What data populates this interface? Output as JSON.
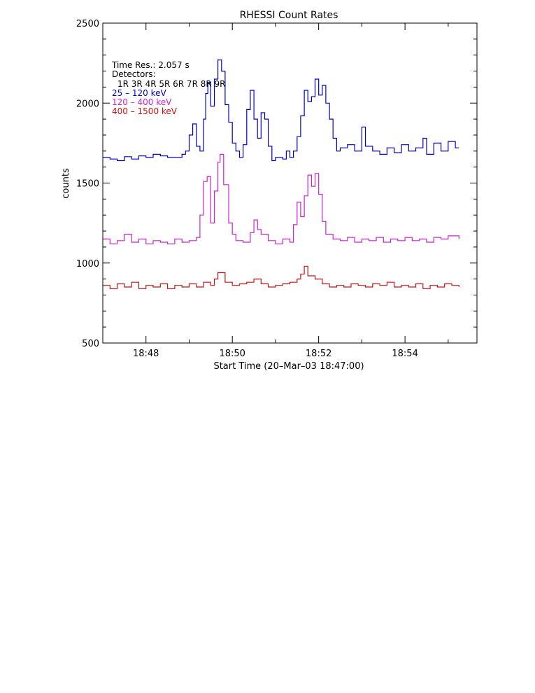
{
  "chart_data": {
    "type": "line",
    "title": "RHESSI Count Rates",
    "xlabel": "Start Time (20–Mar–03 18:47:00)",
    "ylabel": "counts",
    "xlim": [
      "18:47:00",
      "18:55:40"
    ],
    "ylim": [
      500,
      2500
    ],
    "x_ticks": [
      "18:48",
      "18:50",
      "18:52",
      "18:54"
    ],
    "y_ticks": [
      500,
      1000,
      1500,
      2000,
      2500
    ],
    "grid": false,
    "legend_position": "top-left",
    "annotation_lines": [
      "Time Res.: 2.057 s",
      "Detectors:",
      "1R 3R 4R 5R 6R 7R 8R 9R"
    ],
    "time_resolution_s": 2.057,
    "series": [
      {
        "name": "25 – 120 keV",
        "color": "#0000cc",
        "points": [
          [
            "18:47:00",
            1660
          ],
          [
            "18:47:10",
            1650
          ],
          [
            "18:47:20",
            1640
          ],
          [
            "18:47:30",
            1665
          ],
          [
            "18:47:40",
            1650
          ],
          [
            "18:47:50",
            1670
          ],
          [
            "18:48:00",
            1660
          ],
          [
            "18:48:10",
            1680
          ],
          [
            "18:48:20",
            1670
          ],
          [
            "18:48:30",
            1660
          ],
          [
            "18:48:40",
            1660
          ],
          [
            "18:48:50",
            1680
          ],
          [
            "18:48:55",
            1700
          ],
          [
            "18:49:00",
            1800
          ],
          [
            "18:49:05",
            1870
          ],
          [
            "18:49:10",
            1730
          ],
          [
            "18:49:15",
            1700
          ],
          [
            "18:49:20",
            1900
          ],
          [
            "18:49:23",
            2060
          ],
          [
            "18:49:26",
            2130
          ],
          [
            "18:49:30",
            1980
          ],
          [
            "18:49:35",
            2150
          ],
          [
            "18:49:40",
            2270
          ],
          [
            "18:49:45",
            2200
          ],
          [
            "18:49:50",
            1990
          ],
          [
            "18:49:55",
            1880
          ],
          [
            "18:50:00",
            1750
          ],
          [
            "18:50:05",
            1700
          ],
          [
            "18:50:10",
            1660
          ],
          [
            "18:50:15",
            1740
          ],
          [
            "18:50:20",
            1960
          ],
          [
            "18:50:25",
            2080
          ],
          [
            "18:50:30",
            1900
          ],
          [
            "18:50:35",
            1780
          ],
          [
            "18:50:40",
            1940
          ],
          [
            "18:50:45",
            1900
          ],
          [
            "18:50:50",
            1730
          ],
          [
            "18:50:55",
            1640
          ],
          [
            "18:51:00",
            1660
          ],
          [
            "18:51:10",
            1650
          ],
          [
            "18:51:15",
            1700
          ],
          [
            "18:51:20",
            1660
          ],
          [
            "18:51:25",
            1700
          ],
          [
            "18:51:30",
            1790
          ],
          [
            "18:51:35",
            1920
          ],
          [
            "18:51:40",
            2080
          ],
          [
            "18:51:45",
            2010
          ],
          [
            "18:51:50",
            2040
          ],
          [
            "18:51:55",
            2150
          ],
          [
            "18:52:00",
            2050
          ],
          [
            "18:52:05",
            2110
          ],
          [
            "18:52:10",
            2000
          ],
          [
            "18:52:15",
            1900
          ],
          [
            "18:52:20",
            1780
          ],
          [
            "18:52:25",
            1700
          ],
          [
            "18:52:30",
            1720
          ],
          [
            "18:52:40",
            1740
          ],
          [
            "18:52:50",
            1700
          ],
          [
            "18:53:00",
            1850
          ],
          [
            "18:53:05",
            1730
          ],
          [
            "18:53:15",
            1700
          ],
          [
            "18:53:25",
            1680
          ],
          [
            "18:53:35",
            1720
          ],
          [
            "18:53:45",
            1690
          ],
          [
            "18:53:55",
            1740
          ],
          [
            "18:54:05",
            1700
          ],
          [
            "18:54:15",
            1720
          ],
          [
            "18:54:25",
            1780
          ],
          [
            "18:54:30",
            1680
          ],
          [
            "18:54:40",
            1750
          ],
          [
            "18:54:50",
            1700
          ],
          [
            "18:55:00",
            1760
          ],
          [
            "18:55:10",
            1720
          ],
          [
            "18:55:15",
            1720
          ]
        ]
      },
      {
        "name": "120 – 400 keV",
        "color": "#d020d0",
        "points": [
          [
            "18:47:00",
            1150
          ],
          [
            "18:47:10",
            1120
          ],
          [
            "18:47:20",
            1140
          ],
          [
            "18:47:30",
            1180
          ],
          [
            "18:47:40",
            1130
          ],
          [
            "18:47:50",
            1150
          ],
          [
            "18:48:00",
            1120
          ],
          [
            "18:48:10",
            1140
          ],
          [
            "18:48:20",
            1130
          ],
          [
            "18:48:30",
            1120
          ],
          [
            "18:48:40",
            1150
          ],
          [
            "18:48:50",
            1130
          ],
          [
            "18:49:00",
            1140
          ],
          [
            "18:49:10",
            1160
          ],
          [
            "18:49:15",
            1300
          ],
          [
            "18:49:20",
            1510
          ],
          [
            "18:49:25",
            1540
          ],
          [
            "18:49:30",
            1250
          ],
          [
            "18:49:35",
            1450
          ],
          [
            "18:49:40",
            1630
          ],
          [
            "18:49:43",
            1680
          ],
          [
            "18:49:48",
            1490
          ],
          [
            "18:49:55",
            1250
          ],
          [
            "18:50:00",
            1180
          ],
          [
            "18:50:05",
            1140
          ],
          [
            "18:50:15",
            1130
          ],
          [
            "18:50:25",
            1190
          ],
          [
            "18:50:30",
            1270
          ],
          [
            "18:50:35",
            1210
          ],
          [
            "18:50:40",
            1180
          ],
          [
            "18:50:50",
            1140
          ],
          [
            "18:51:00",
            1120
          ],
          [
            "18:51:10",
            1150
          ],
          [
            "18:51:20",
            1130
          ],
          [
            "18:51:25",
            1240
          ],
          [
            "18:51:30",
            1380
          ],
          [
            "18:51:35",
            1290
          ],
          [
            "18:51:40",
            1420
          ],
          [
            "18:51:45",
            1550
          ],
          [
            "18:51:50",
            1480
          ],
          [
            "18:51:55",
            1560
          ],
          [
            "18:52:00",
            1430
          ],
          [
            "18:52:05",
            1260
          ],
          [
            "18:52:10",
            1180
          ],
          [
            "18:52:20",
            1150
          ],
          [
            "18:52:30",
            1140
          ],
          [
            "18:52:40",
            1160
          ],
          [
            "18:52:50",
            1130
          ],
          [
            "18:53:00",
            1150
          ],
          [
            "18:53:10",
            1140
          ],
          [
            "18:53:20",
            1160
          ],
          [
            "18:53:30",
            1130
          ],
          [
            "18:53:40",
            1150
          ],
          [
            "18:53:50",
            1140
          ],
          [
            "18:54:00",
            1160
          ],
          [
            "18:54:10",
            1140
          ],
          [
            "18:54:20",
            1150
          ],
          [
            "18:54:30",
            1130
          ],
          [
            "18:54:40",
            1160
          ],
          [
            "18:54:50",
            1150
          ],
          [
            "18:55:00",
            1170
          ],
          [
            "18:55:15",
            1150
          ]
        ]
      },
      {
        "name": "400 – 1500 keV",
        "color": "#cc1111",
        "points": [
          [
            "18:47:00",
            860
          ],
          [
            "18:47:10",
            840
          ],
          [
            "18:47:20",
            870
          ],
          [
            "18:47:30",
            850
          ],
          [
            "18:47:40",
            880
          ],
          [
            "18:47:50",
            840
          ],
          [
            "18:48:00",
            860
          ],
          [
            "18:48:10",
            850
          ],
          [
            "18:48:20",
            870
          ],
          [
            "18:48:30",
            840
          ],
          [
            "18:48:40",
            860
          ],
          [
            "18:48:50",
            850
          ],
          [
            "18:49:00",
            870
          ],
          [
            "18:49:10",
            850
          ],
          [
            "18:49:20",
            880
          ],
          [
            "18:49:30",
            860
          ],
          [
            "18:49:35",
            900
          ],
          [
            "18:49:40",
            940
          ],
          [
            "18:49:50",
            880
          ],
          [
            "18:50:00",
            860
          ],
          [
            "18:50:10",
            870
          ],
          [
            "18:50:20",
            880
          ],
          [
            "18:50:30",
            900
          ],
          [
            "18:50:40",
            870
          ],
          [
            "18:50:50",
            850
          ],
          [
            "18:51:00",
            860
          ],
          [
            "18:51:10",
            870
          ],
          [
            "18:51:20",
            880
          ],
          [
            "18:51:30",
            900
          ],
          [
            "18:51:35",
            930
          ],
          [
            "18:51:40",
            980
          ],
          [
            "18:51:45",
            920
          ],
          [
            "18:51:55",
            900
          ],
          [
            "18:52:05",
            870
          ],
          [
            "18:52:15",
            850
          ],
          [
            "18:52:25",
            860
          ],
          [
            "18:52:35",
            850
          ],
          [
            "18:52:45",
            870
          ],
          [
            "18:52:55",
            860
          ],
          [
            "18:53:05",
            850
          ],
          [
            "18:53:15",
            870
          ],
          [
            "18:53:25",
            860
          ],
          [
            "18:53:35",
            880
          ],
          [
            "18:53:45",
            850
          ],
          [
            "18:53:55",
            860
          ],
          [
            "18:54:05",
            850
          ],
          [
            "18:54:15",
            870
          ],
          [
            "18:54:25",
            840
          ],
          [
            "18:54:35",
            860
          ],
          [
            "18:54:45",
            850
          ],
          [
            "18:54:55",
            870
          ],
          [
            "18:55:05",
            860
          ],
          [
            "18:55:15",
            850
          ]
        ]
      }
    ]
  }
}
